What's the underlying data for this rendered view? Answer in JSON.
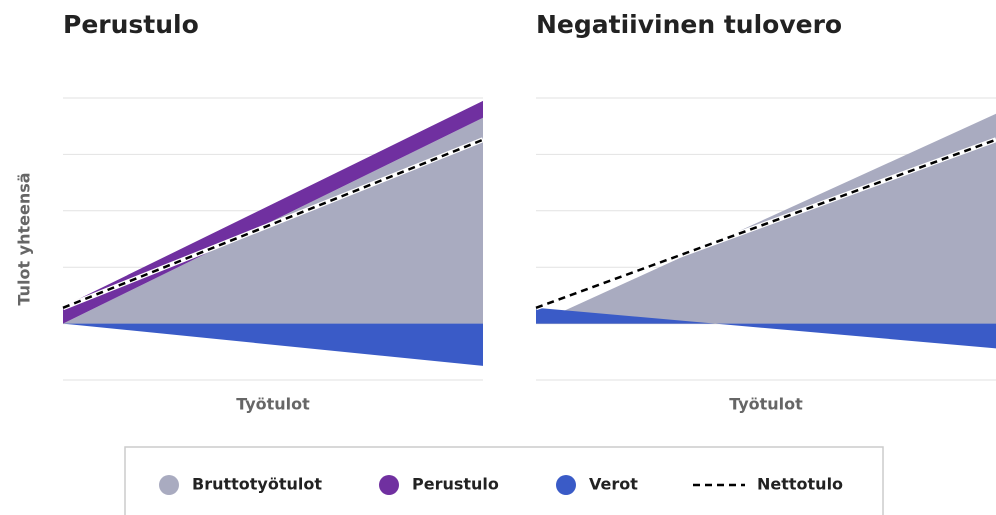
{
  "chart_data": [
    {
      "type": "area",
      "title": "Perustulo",
      "xlabel": "Työtulot",
      "ylabel": "Tulot yhteensä",
      "x": [
        0,
        1
      ],
      "xlim": [
        0,
        1
      ],
      "ylim": [
        -1,
        4
      ],
      "yticks": [
        -1,
        0,
        1,
        2,
        3,
        4
      ],
      "grid": true,
      "series": [
        {
          "name": "Bruttotyötulot",
          "color": "#a9abc0",
          "kind": "area",
          "stack": "income",
          "values": [
            0,
            3.65
          ]
        },
        {
          "name": "Perustulo",
          "color": "#7030a0",
          "kind": "area",
          "stack": "income",
          "values": [
            0.3,
            0.3
          ]
        },
        {
          "name": "Verot",
          "color": "#3a5bc7",
          "kind": "area",
          "stack": "tax",
          "values": [
            0,
            -0.75
          ]
        },
        {
          "name": "Nettotulo",
          "color": "#000000",
          "kind": "line",
          "dashed": true,
          "values": [
            0.28,
            3.26
          ]
        }
      ]
    },
    {
      "type": "area",
      "title": "Negatiivinen tulovero",
      "xlabel": "Työtulot",
      "x": [
        0,
        1
      ],
      "xlim": [
        0,
        1
      ],
      "ylim": [
        -1,
        4
      ],
      "yticks": [
        -1,
        0,
        1,
        2,
        3,
        4
      ],
      "grid": true,
      "series": [
        {
          "name": "Bruttotyötulot",
          "color": "#a9abc0",
          "kind": "area",
          "stack": "income",
          "values": [
            0,
            3.72
          ]
        },
        {
          "name": "Verot",
          "color": "#3a5bc7",
          "kind": "area",
          "stack": "tax",
          "values": [
            0.28,
            -0.44
          ]
        },
        {
          "name": "Nettotulo",
          "color": "#000000",
          "kind": "line",
          "dashed": true,
          "values": [
            0.28,
            3.26
          ]
        }
      ]
    }
  ]
}
